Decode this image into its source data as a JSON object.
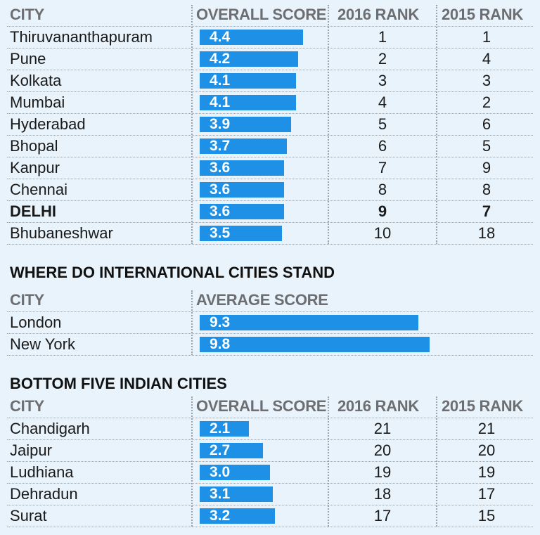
{
  "chart_data": [
    {
      "type": "table",
      "title": "",
      "columns": [
        "CITY",
        "OVERALL SCORE",
        "2016 RANK",
        "2015 RANK"
      ],
      "rows": [
        {
          "city": "Thiruvananthapuram",
          "score": "4.4",
          "rank2016": "1",
          "rank2015": "1"
        },
        {
          "city": "Pune",
          "score": "4.2",
          "rank2016": "2",
          "rank2015": "4"
        },
        {
          "city": "Kolkata",
          "score": "4.1",
          "rank2016": "3",
          "rank2015": "3"
        },
        {
          "city": "Mumbai",
          "score": "4.1",
          "rank2016": "4",
          "rank2015": "2"
        },
        {
          "city": "Hyderabad",
          "score": "3.9",
          "rank2016": "5",
          "rank2015": "6"
        },
        {
          "city": "Bhopal",
          "score": "3.7",
          "rank2016": "6",
          "rank2015": "5"
        },
        {
          "city": "Kanpur",
          "score": "3.6",
          "rank2016": "7",
          "rank2015": "9"
        },
        {
          "city": "Chennai",
          "score": "3.6",
          "rank2016": "8",
          "rank2015": "8"
        },
        {
          "city": "DELHI",
          "score": "3.6",
          "rank2016": "9",
          "rank2015": "7",
          "highlight": true
        },
        {
          "city": "Bhubaneshwar",
          "score": "3.5",
          "rank2016": "10",
          "rank2015": "18"
        }
      ]
    },
    {
      "type": "table",
      "title": "WHERE DO INTERNATIONAL CITIES STAND",
      "columns": [
        "CITY",
        "AVERAGE SCORE"
      ],
      "rows": [
        {
          "city": "London",
          "score": "9.3"
        },
        {
          "city": "New York",
          "score": "9.8"
        }
      ]
    },
    {
      "type": "table",
      "title": "BOTTOM FIVE INDIAN CITIES",
      "columns": [
        "CITY",
        "OVERALL SCORE",
        "2016 RANK",
        "2015 RANK"
      ],
      "rows": [
        {
          "city": "Chandigarh",
          "score": "2.1",
          "rank2016": "21",
          "rank2015": "21"
        },
        {
          "city": "Jaipur",
          "score": "2.7",
          "rank2016": "20",
          "rank2015": "20"
        },
        {
          "city": "Ludhiana",
          "score": "3.0",
          "rank2016": "19",
          "rank2015": "19"
        },
        {
          "city": "Dehradun",
          "score": "3.1",
          "rank2016": "18",
          "rank2015": "17"
        },
        {
          "city": "Surat",
          "score": "3.2",
          "rank2016": "17",
          "rank2015": "15"
        }
      ]
    }
  ],
  "colors": {
    "background": "#e8f3fb",
    "bar": "#1e90e6",
    "header_text": "#6d6e71",
    "text": "#1a1a1a"
  }
}
